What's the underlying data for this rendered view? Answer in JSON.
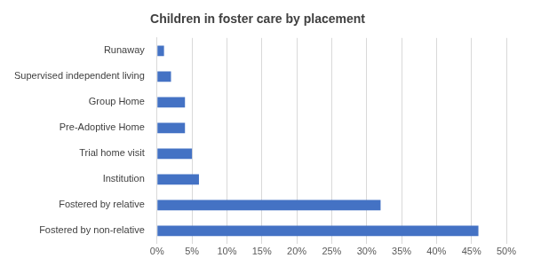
{
  "chart_data": {
    "type": "bar",
    "orientation": "horizontal",
    "title": "Children in foster care by placement",
    "categories": [
      "Runaway",
      "Supervised independent living",
      "Group Home",
      "Pre-Adoptive Home",
      "Trial home visit",
      "Institution",
      "Fostered by relative",
      "Fostered by non-relative"
    ],
    "values": [
      1,
      2,
      4,
      4,
      5,
      6,
      32,
      46
    ],
    "color": "#4472c4",
    "xlim": [
      0,
      50
    ],
    "xticks": [
      {
        "value": 0,
        "label": "0%"
      },
      {
        "value": 5,
        "label": "5%"
      },
      {
        "value": 10,
        "label": "10%"
      },
      {
        "value": 15,
        "label": "15%"
      },
      {
        "value": 20,
        "label": "20%"
      },
      {
        "value": 25,
        "label": "25%"
      },
      {
        "value": 30,
        "label": "30%"
      },
      {
        "value": 35,
        "label": "35%"
      },
      {
        "value": 40,
        "label": "40%"
      },
      {
        "value": 45,
        "label": "45%"
      },
      {
        "value": 50,
        "label": "50%"
      }
    ],
    "grid": true
  }
}
